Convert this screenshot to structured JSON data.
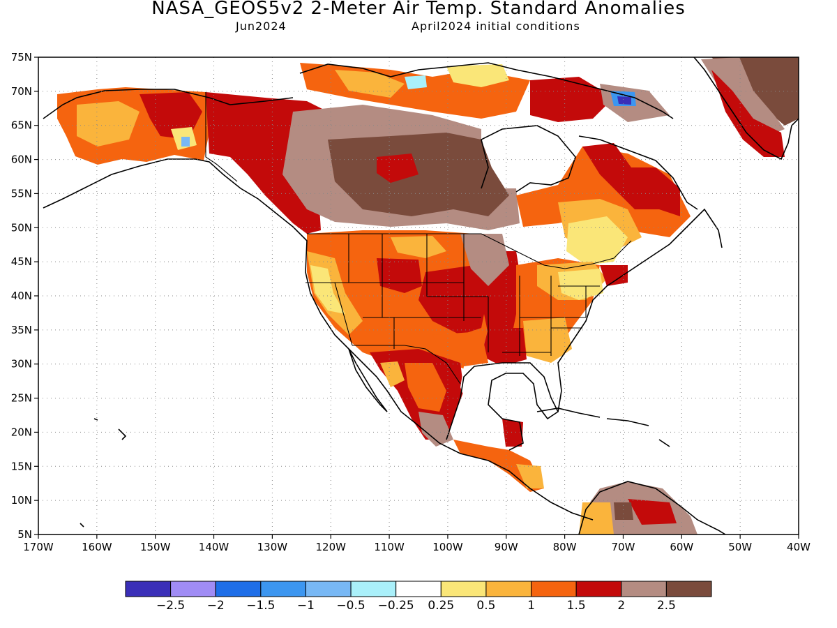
{
  "title": "NASA_GEOS5v2 2-Meter Air Temp. Standard Anomalies",
  "valid_month": "Jun2024",
  "init_label": "April2024 initial conditions",
  "map": {
    "lon_ticks": [
      "170W",
      "160W",
      "150W",
      "140W",
      "130W",
      "120W",
      "110W",
      "100W",
      "90W",
      "80W",
      "70W",
      "60W",
      "50W",
      "40W"
    ],
    "lat_ticks": [
      "75N",
      "70N",
      "65N",
      "60N",
      "55N",
      "50N",
      "45N",
      "40N",
      "35N",
      "30N",
      "25N",
      "20N",
      "15N",
      "10N",
      "5N"
    ],
    "lon_range": [
      -170,
      -40
    ],
    "lat_range": [
      5,
      75
    ],
    "grid": "dotted"
  },
  "colorbar": {
    "colors": [
      "#3a2fb8",
      "#a08cf5",
      "#1e6ee8",
      "#3c96f0",
      "#78b8f5",
      "#aaf0fa",
      "#ffffff",
      "#fae678",
      "#fab43c",
      "#f5640f",
      "#c30a0a",
      "#b48c82",
      "#7a4b3c"
    ],
    "labels": [
      "-2.5",
      "-2",
      "-1.5",
      "-1",
      "-0.5",
      "-0.25",
      "0.25",
      "0.5",
      "1",
      "1.5",
      "2",
      "2.5"
    ]
  }
}
